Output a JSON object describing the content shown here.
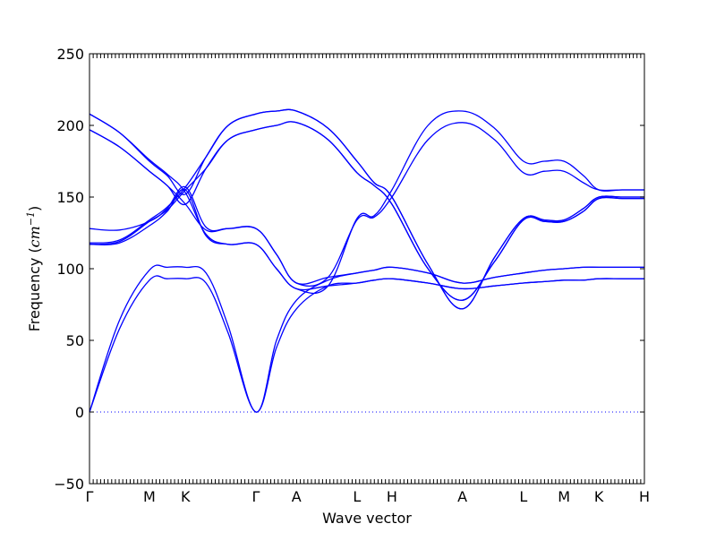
{
  "chart_data": {
    "type": "line",
    "title": "",
    "xlabel": "Wave vector",
    "ylabel_text": "Frequency (",
    "ylabel_unit": "cm",
    "ylabel_exp": "−1",
    "ylabel_close": ")",
    "ylim": [
      -50,
      250
    ],
    "yticks": [
      -50,
      0,
      50,
      100,
      150,
      200,
      250
    ],
    "ytick_labels": [
      "−50",
      "0",
      "50",
      "100",
      "150",
      "200",
      "250"
    ],
    "xlim": [
      0,
      1
    ],
    "high_symmetry_points": [
      {
        "label": "Γ",
        "x": 0.0
      },
      {
        "label": "M",
        "x": 0.108
      },
      {
        "label": "K",
        "x": 0.173
      },
      {
        "label": "Γ",
        "x": 0.3
      },
      {
        "label": "A",
        "x": 0.373
      },
      {
        "label": "L",
        "x": 0.482
      },
      {
        "label": "H",
        "x": 0.545
      },
      {
        "label": "A",
        "x": 0.672
      },
      {
        "label": "L",
        "x": 0.782
      },
      {
        "label": "M",
        "x": 0.855
      },
      {
        "label": "K",
        "x": 0.918
      },
      {
        "label": "H",
        "x": 1.0
      }
    ],
    "zero_line": {
      "y": 0,
      "style": "dotted"
    },
    "line_color": "#0000ff",
    "series": [
      {
        "x": [
          0,
          0.054,
          0.108,
          0.14,
          0.173,
          0.21,
          0.25,
          0.3,
          0.337,
          0.373,
          0.43,
          0.482,
          0.513,
          0.545,
          0.61,
          0.672,
          0.73,
          0.782,
          0.82,
          0.855,
          0.89,
          0.918,
          0.96,
          1.0
        ],
        "values": [
          0,
          58,
          92,
          93,
          93,
          90,
          55,
          0,
          45,
          72,
          88,
          90,
          92,
          93,
          90,
          86,
          88,
          90,
          91,
          92,
          92,
          93,
          93,
          93
        ]
      },
      {
        "x": [
          0,
          0.054,
          0.108,
          0.14,
          0.173,
          0.21,
          0.25,
          0.3,
          0.337,
          0.373,
          0.43,
          0.482,
          0.513,
          0.545,
          0.61,
          0.672,
          0.73,
          0.782,
          0.82,
          0.855,
          0.89,
          0.918,
          0.96,
          1.0
        ],
        "values": [
          0,
          64,
          99,
          101,
          101,
          97,
          60,
          0,
          50,
          78,
          92,
          97,
          99,
          101,
          97,
          90,
          94,
          97,
          99,
          100,
          101,
          101,
          101,
          101
        ]
      },
      {
        "x": [
          0,
          0.054,
          0.108,
          0.14,
          0.173,
          0.21,
          0.25,
          0.3,
          0.337,
          0.373,
          0.43,
          0.482,
          0.513,
          0.545,
          0.61,
          0.672,
          0.73,
          0.782,
          0.82,
          0.855,
          0.89,
          0.918,
          0.96,
          1.0
        ],
        "values": [
          117,
          118,
          130,
          140,
          155,
          123,
          117,
          117,
          100,
          86,
          88,
          90,
          92,
          93,
          90,
          86,
          88,
          90,
          91,
          92,
          92,
          93,
          93,
          93
        ]
      },
      {
        "x": [
          0,
          0.054,
          0.108,
          0.14,
          0.173,
          0.21,
          0.25,
          0.3,
          0.337,
          0.373,
          0.43,
          0.482,
          0.513,
          0.545,
          0.61,
          0.672,
          0.73,
          0.782,
          0.82,
          0.855,
          0.89,
          0.918,
          0.96,
          1.0
        ],
        "values": [
          128,
          127,
          133,
          142,
          157,
          129,
          128,
          128,
          110,
          90,
          94,
          97,
          99,
          101,
          97,
          90,
          94,
          97,
          99,
          100,
          101,
          101,
          101,
          101
        ]
      },
      {
        "x": [
          0,
          0.054,
          0.108,
          0.14,
          0.173,
          0.21,
          0.25,
          0.3,
          0.337,
          0.373,
          0.43,
          0.482,
          0.513,
          0.545,
          0.61,
          0.672,
          0.73,
          0.782,
          0.82,
          0.855,
          0.89,
          0.918,
          0.96,
          1.0
        ],
        "values": [
          197,
          185,
          168,
          158,
          145,
          170,
          190,
          197,
          200,
          202,
          190,
          167,
          158,
          145,
          100,
          78,
          105,
          134,
          133,
          133,
          140,
          149,
          149,
          149
        ]
      },
      {
        "x": [
          0,
          0.054,
          0.108,
          0.14,
          0.173,
          0.21,
          0.25,
          0.3,
          0.337,
          0.373,
          0.43,
          0.482,
          0.513,
          0.545,
          0.61,
          0.672,
          0.73,
          0.782,
          0.82,
          0.855,
          0.89,
          0.918,
          0.96,
          1.0
        ],
        "values": [
          208,
          195,
          175,
          165,
          152,
          178,
          200,
          208,
          210,
          210,
          198,
          175,
          160,
          150,
          103,
          72,
          108,
          135,
          134,
          134,
          142,
          150,
          150,
          150
        ]
      },
      {
        "x": [
          0,
          0.054,
          0.108,
          0.14,
          0.173,
          0.21,
          0.25,
          0.3,
          0.337,
          0.373,
          0.43,
          0.482,
          0.513,
          0.545,
          0.61,
          0.672,
          0.73,
          0.782,
          0.82,
          0.855,
          0.89,
          0.918,
          0.96,
          1.0
        ],
        "values": [
          117,
          119,
          133,
          141,
          155,
          170,
          190,
          197,
          200,
          202,
          190,
          167,
          158,
          145,
          100,
          78,
          105,
          134,
          133,
          133,
          140,
          149,
          149,
          149
        ]
      },
      {
        "x": [
          0,
          0.054,
          0.108,
          0.14,
          0.173,
          0.21,
          0.25,
          0.3,
          0.337,
          0.373,
          0.43,
          0.482,
          0.513,
          0.545,
          0.61,
          0.672,
          0.73,
          0.782,
          0.82,
          0.855,
          0.89,
          0.918,
          0.96,
          1.0
        ],
        "values": [
          118,
          120,
          134,
          143,
          157,
          178,
          200,
          208,
          210,
          210,
          198,
          175,
          160,
          150,
          103,
          72,
          108,
          135,
          134,
          134,
          142,
          150,
          150,
          150
        ]
      },
      {
        "x": [
          0,
          0.054,
          0.108,
          0.14,
          0.173,
          0.21,
          0.25,
          0.3,
          0.337,
          0.373,
          0.43,
          0.482,
          0.513,
          0.545,
          0.61,
          0.672,
          0.73,
          0.782,
          0.82,
          0.855,
          0.89,
          0.918,
          0.96,
          1.0
        ],
        "values": [
          197,
          185,
          168,
          158,
          145,
          127,
          128,
          128,
          110,
          90,
          94,
          134,
          136,
          150,
          190,
          202,
          190,
          167,
          168,
          168,
          160,
          155,
          155,
          155
        ]
      },
      {
        "x": [
          0,
          0.054,
          0.108,
          0.14,
          0.173,
          0.21,
          0.25,
          0.3,
          0.337,
          0.373,
          0.43,
          0.482,
          0.513,
          0.545,
          0.61,
          0.672,
          0.73,
          0.782,
          0.82,
          0.855,
          0.89,
          0.918,
          0.96,
          1.0
        ],
        "values": [
          208,
          195,
          176,
          166,
          153,
          124,
          117,
          117,
          100,
          86,
          88,
          135,
          137,
          155,
          200,
          210,
          198,
          175,
          175,
          175,
          165,
          155,
          155,
          155
        ]
      }
    ]
  }
}
